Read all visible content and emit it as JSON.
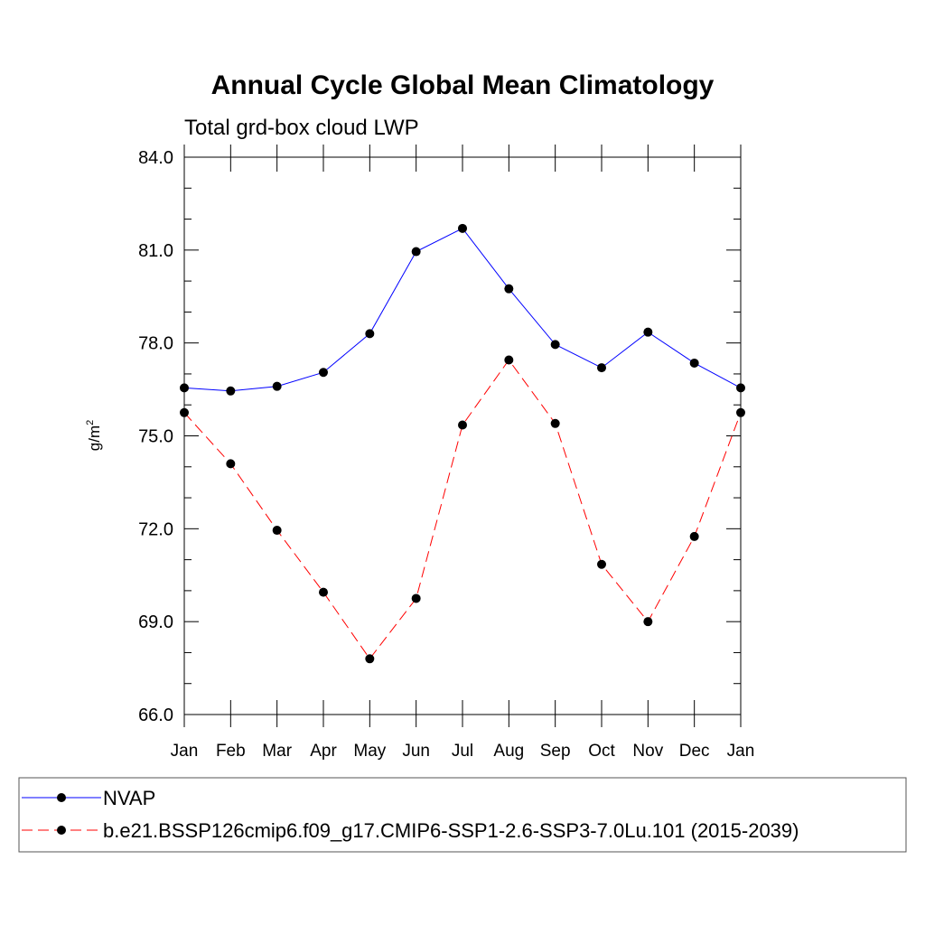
{
  "chart_data": {
    "type": "line",
    "title": "Annual Cycle Global Mean Climatology",
    "subtitle": "Total grd-box cloud LWP",
    "ylabel": "g/m",
    "ylabel_sup": "2",
    "xlabel": "",
    "ylim": [
      66.0,
      84.0
    ],
    "yticks": [
      "66.0",
      "69.0",
      "72.0",
      "75.0",
      "78.0",
      "81.0",
      "84.0"
    ],
    "categories": [
      "Jan",
      "Feb",
      "Mar",
      "Apr",
      "May",
      "Jun",
      "Jul",
      "Aug",
      "Sep",
      "Oct",
      "Nov",
      "Dec",
      "Jan"
    ],
    "grid": false,
    "legend_position": "bottom",
    "series": [
      {
        "name": "NVAP",
        "color": "#0000ff",
        "line_style": "solid",
        "marker": "filled-circle",
        "values": [
          76.55,
          76.45,
          76.6,
          77.05,
          78.3,
          80.95,
          81.7,
          79.75,
          77.95,
          77.2,
          78.35,
          77.35,
          76.55
        ]
      },
      {
        "name": "b.e21.BSSP126cmip6.f09_g17.CMIP6-SSP1-2.6-SSP3-7.0Lu.101 (2015-2039)",
        "color": "#ff0000",
        "line_style": "dashed",
        "marker": "filled-circle",
        "values": [
          75.75,
          74.1,
          71.95,
          69.95,
          67.8,
          69.75,
          75.35,
          77.45,
          75.4,
          70.85,
          69.0,
          71.75,
          75.75
        ]
      }
    ]
  }
}
